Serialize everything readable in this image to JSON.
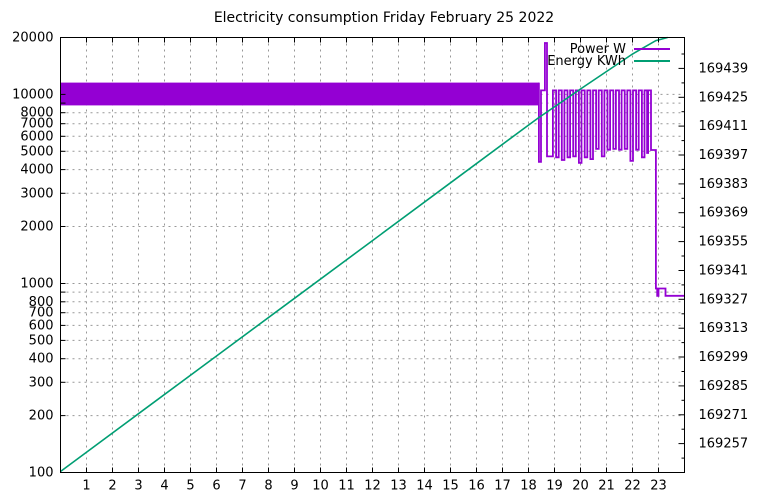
{
  "title": "Electricity consumption Friday February 25 2022",
  "colors": {
    "power": "#9400d3",
    "energy": "#009e73",
    "grid": "#989898",
    "axis": "#000000",
    "background": "#ffffff"
  },
  "legend": [
    {
      "label": "Power W",
      "series": "power"
    },
    {
      "label": "Energy KWh",
      "series": "energy"
    }
  ],
  "chart_data": {
    "type": "line",
    "title": "Electricity consumption Friday February 25 2022",
    "xlabel": "",
    "ylabel_left": "",
    "ylabel_right": "",
    "grid": true,
    "legend_position": "top-right-inside",
    "x_axis": {
      "unit": "hour of day",
      "range": [
        0,
        24
      ],
      "tick_values": [
        1,
        2,
        3,
        4,
        5,
        6,
        7,
        8,
        9,
        10,
        11,
        12,
        13,
        14,
        15,
        16,
        17,
        18,
        19,
        20,
        21,
        22,
        23
      ],
      "tick_labels": [
        "1",
        "2",
        "3",
        "4",
        "5",
        "6",
        "7",
        "8",
        "9",
        "10",
        "11",
        "12",
        "13",
        "14",
        "15",
        "16",
        "17",
        "18",
        "19",
        "20",
        "21",
        "22",
        "23"
      ]
    },
    "y_left": {
      "scale": "log",
      "range": [
        100,
        20000
      ],
      "ticks": [
        [
          100,
          "100"
        ],
        [
          200,
          "200"
        ],
        [
          300,
          "300"
        ],
        [
          400,
          "400"
        ],
        [
          500,
          "500"
        ],
        [
          600,
          "600"
        ],
        [
          700,
          "700"
        ],
        [
          800,
          "800"
        ],
        [
          900,
          ""
        ],
        [
          1000,
          "1000"
        ],
        [
          2000,
          "2000"
        ],
        [
          3000,
          "3000"
        ],
        [
          4000,
          "4000"
        ],
        [
          5000,
          "5000"
        ],
        [
          6000,
          "6000"
        ],
        [
          7000,
          "7000"
        ],
        [
          8000,
          "8000"
        ],
        [
          9000,
          ""
        ],
        [
          10000,
          "10000"
        ],
        [
          20000,
          "20000"
        ]
      ]
    },
    "y_right": {
      "scale": "linear",
      "range": [
        169243,
        169454
      ],
      "major_tick_start": 169257,
      "major_tick_step": 14,
      "minor_tick_step": 7,
      "tick_labels": [
        "169257",
        "169271",
        "169285",
        "169299",
        "169313",
        "169327",
        "169341",
        "169355",
        "169369",
        "169383",
        "169397",
        "169411",
        "169425",
        "169439"
      ]
    },
    "series": [
      {
        "name": "Power W",
        "axis": "left",
        "color_key": "power",
        "style": "steps",
        "band": {
          "note": "rapid oscillation from 00:00 to ~18:24 renders as a solid band",
          "t_start": 0,
          "t_end": 18.4,
          "w_low": 8750,
          "w_high": 11550
        },
        "steps": [
          [
            18.4,
            4400
          ],
          [
            18.48,
            10500
          ],
          [
            18.63,
            18700
          ],
          [
            18.71,
            4700
          ],
          [
            18.94,
            10500
          ],
          [
            19.06,
            4650
          ],
          [
            19.16,
            10500
          ],
          [
            19.28,
            4500
          ],
          [
            19.38,
            10500
          ],
          [
            19.5,
            4650
          ],
          [
            19.6,
            10500
          ],
          [
            19.72,
            4700
          ],
          [
            19.82,
            10500
          ],
          [
            19.94,
            4350
          ],
          [
            20.04,
            10500
          ],
          [
            20.16,
            4650
          ],
          [
            20.26,
            10500
          ],
          [
            20.38,
            4550
          ],
          [
            20.48,
            10500
          ],
          [
            20.6,
            5150
          ],
          [
            20.7,
            10500
          ],
          [
            20.82,
            4700
          ],
          [
            20.92,
            10500
          ],
          [
            21.04,
            5100
          ],
          [
            21.14,
            10500
          ],
          [
            21.26,
            5150
          ],
          [
            21.36,
            10500
          ],
          [
            21.48,
            5100
          ],
          [
            21.58,
            10500
          ],
          [
            21.7,
            5150
          ],
          [
            21.8,
            10500
          ],
          [
            21.92,
            4450
          ],
          [
            22.02,
            10500
          ],
          [
            22.14,
            5100
          ],
          [
            22.24,
            10500
          ],
          [
            22.36,
            4650
          ],
          [
            22.46,
            10500
          ],
          [
            22.56,
            4900
          ],
          [
            22.6,
            10500
          ],
          [
            22.71,
            5080
          ],
          [
            22.9,
            940
          ],
          [
            22.95,
            860
          ],
          [
            23.0,
            940
          ],
          [
            23.27,
            860
          ]
        ]
      },
      {
        "name": "Energy KWh",
        "axis": "right",
        "color_key": "energy",
        "style": "line",
        "points": [
          [
            0,
            169243.5
          ],
          [
            3,
            169271.5
          ],
          [
            6,
            169299.5
          ],
          [
            9,
            169327.5
          ],
          [
            12,
            169355.5
          ],
          [
            15,
            169383.5
          ],
          [
            18,
            169411.5
          ],
          [
            18.4,
            169415.2
          ],
          [
            20,
            169429.0
          ],
          [
            22,
            169446.0
          ],
          [
            22.9,
            169452.5
          ],
          [
            23.35,
            169454
          ]
        ]
      }
    ]
  }
}
